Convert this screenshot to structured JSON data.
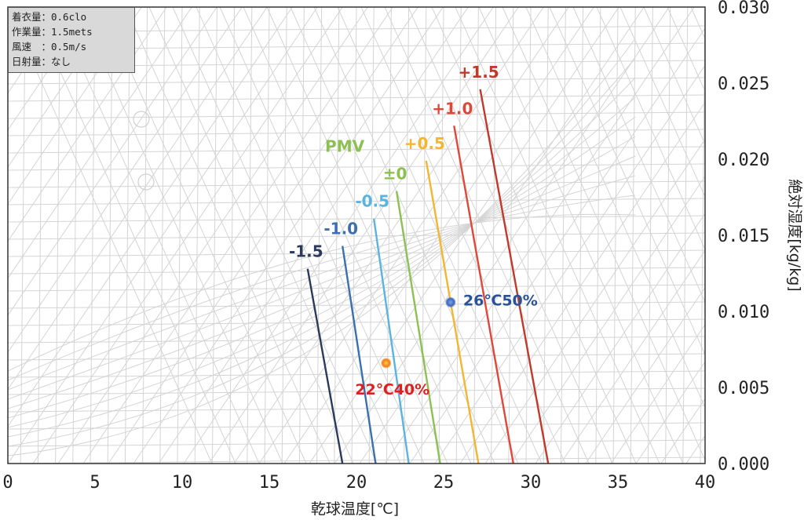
{
  "conditions": {
    "clothing": "着衣量：0.6clo",
    "metabolic": "作業量：1.5mets",
    "air_speed": "風速　：0.5m/s",
    "radiation": "日射量：なし"
  },
  "chart_data": {
    "type": "line",
    "title": "",
    "xlabel": "乾球温度[℃]",
    "ylabel": "絶対湿度[kg/kg]",
    "xlim": [
      0,
      40
    ],
    "ylim": [
      0,
      0.03
    ],
    "x_ticks": [
      "0",
      "5",
      "10",
      "15",
      "20",
      "25",
      "30",
      "35",
      "40"
    ],
    "y_ticks": [
      "0.000",
      "0.005",
      "0.010",
      "0.015",
      "0.020",
      "0.025",
      "0.030"
    ],
    "background": "psychrometric chart (light grey)",
    "grid": true,
    "series_title": "PMV",
    "series": [
      {
        "name": "-1.5",
        "color": "#2b3a5c",
        "points": [
          [
            19.2,
            0.0
          ],
          [
            17.2,
            0.0128
          ]
        ]
      },
      {
        "name": "-1.0",
        "color": "#3a6fb0",
        "points": [
          [
            21.1,
            0.0
          ],
          [
            19.2,
            0.0143
          ]
        ]
      },
      {
        "name": "-0.5",
        "color": "#5ab4e0",
        "points": [
          [
            23.0,
            0.0
          ],
          [
            21.0,
            0.0161
          ]
        ]
      },
      {
        "name": "±0",
        "color": "#8cc152",
        "points": [
          [
            24.8,
            0.0
          ],
          [
            22.3,
            0.0179
          ]
        ]
      },
      {
        "name": "+0.5",
        "color": "#f4b531",
        "points": [
          [
            27.0,
            0.0
          ],
          [
            24.0,
            0.0199
          ]
        ]
      },
      {
        "name": "+1.0",
        "color": "#e0473b",
        "points": [
          [
            29.0,
            0.0
          ],
          [
            25.6,
            0.0222
          ]
        ]
      },
      {
        "name": "+1.5",
        "color": "#c0392b",
        "points": [
          [
            31.0,
            0.0
          ],
          [
            27.1,
            0.0246
          ]
        ]
      }
    ],
    "points": [
      {
        "label": "22℃40%",
        "x": 21.7,
        "y": 0.0066,
        "color": "#e8501f",
        "label_color": "#e02020"
      },
      {
        "label": "26℃50%",
        "x": 25.4,
        "y": 0.0106,
        "color": "#4a72c4",
        "label_color": "#2a5298"
      }
    ]
  }
}
